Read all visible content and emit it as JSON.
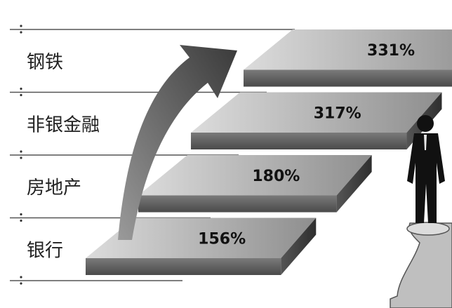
{
  "chart_data": {
    "type": "bar",
    "categories": [
      "钢铁",
      "非银金融",
      "房地产",
      "银行"
    ],
    "values": [
      331,
      317,
      180,
      156
    ],
    "value_labels": [
      "331%",
      "317%",
      "180%",
      "156%"
    ],
    "unit": "%",
    "style": "staircase",
    "grid": true,
    "legend": "none",
    "colors": {
      "step_top_light": "#d4d4d4",
      "step_top_dark": "#8f8f8f",
      "step_front": "#5e5e5e",
      "step_side": "#3f3f3f",
      "arrow": "#4a4a4a",
      "rule": "#555555"
    }
  },
  "decor": {
    "figure": "businessman-standing-on-pawn"
  }
}
